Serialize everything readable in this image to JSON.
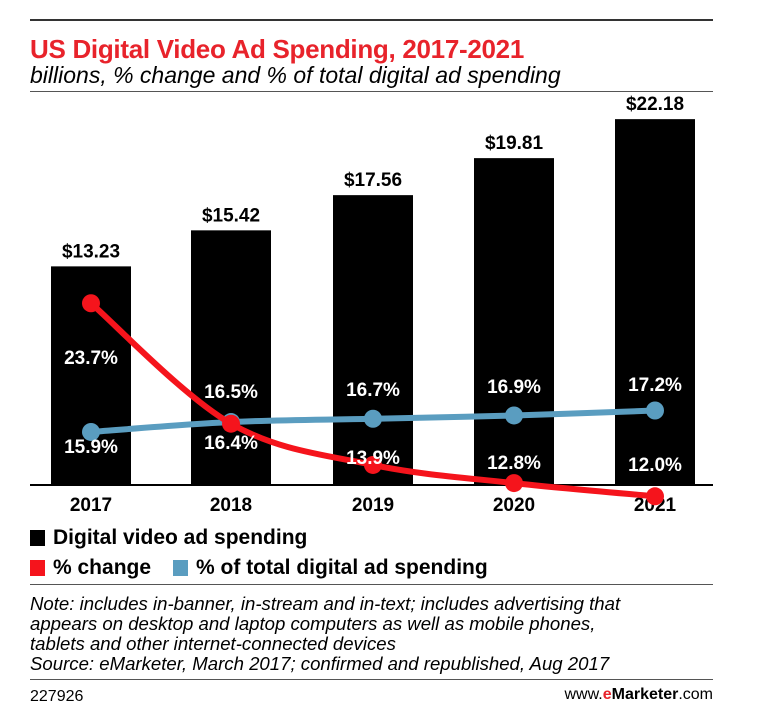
{
  "header": {
    "title": "US Digital Video Ad Spending, 2017-2021",
    "subtitle": "billions, % change and % of total digital ad spending"
  },
  "colors": {
    "title": "#e8232b",
    "bars": "#000000",
    "pct_change": "#f5141c",
    "pct_total": "#5a9dc0",
    "text": "#000000"
  },
  "chart_data": {
    "type": "bar",
    "title": "US Digital Video Ad Spending, 2017-2021",
    "subtitle": "billions, % change and % of total digital ad spending",
    "categories": [
      "2017",
      "2018",
      "2019",
      "2020",
      "2021"
    ],
    "ylim": [
      0,
      23
    ],
    "grid": false,
    "series": [
      {
        "name": "Digital video ad spending",
        "kind": "bar",
        "values": [
          13.23,
          15.42,
          17.56,
          19.81,
          22.18
        ],
        "labels": [
          "$13.23",
          "$15.42",
          "$17.56",
          "$19.81",
          "$22.18"
        ]
      },
      {
        "name": "% change",
        "kind": "line",
        "values": [
          23.7,
          16.4,
          13.9,
          12.8,
          12.0
        ],
        "labels": [
          "23.7%",
          "16.4%",
          "13.9%",
          "12.8%",
          "12.0%"
        ]
      },
      {
        "name": "% of total digital ad spending",
        "kind": "line",
        "values": [
          15.9,
          16.5,
          16.7,
          16.9,
          17.2
        ],
        "labels": [
          "15.9%",
          "16.5%",
          "16.7%",
          "16.9%",
          "17.2%"
        ]
      }
    ]
  },
  "legend": {
    "bars": "Digital video ad spending",
    "pct_change": "% change",
    "pct_total": "% of total digital ad spending"
  },
  "note": {
    "lines": [
      "Note: includes in-banner, in-stream and in-text; includes advertising that",
      "appears on desktop and laptop computers as well as mobile phones,",
      "tablets and other internet-connected devices",
      "Source: eMarketer, March 2017; confirmed and republished, Aug 2017"
    ]
  },
  "footer": {
    "chart_id": "227926",
    "site_prefix": "www.",
    "site_e": "e",
    "site_name": "Marketer",
    "site_suffix": ".com"
  }
}
